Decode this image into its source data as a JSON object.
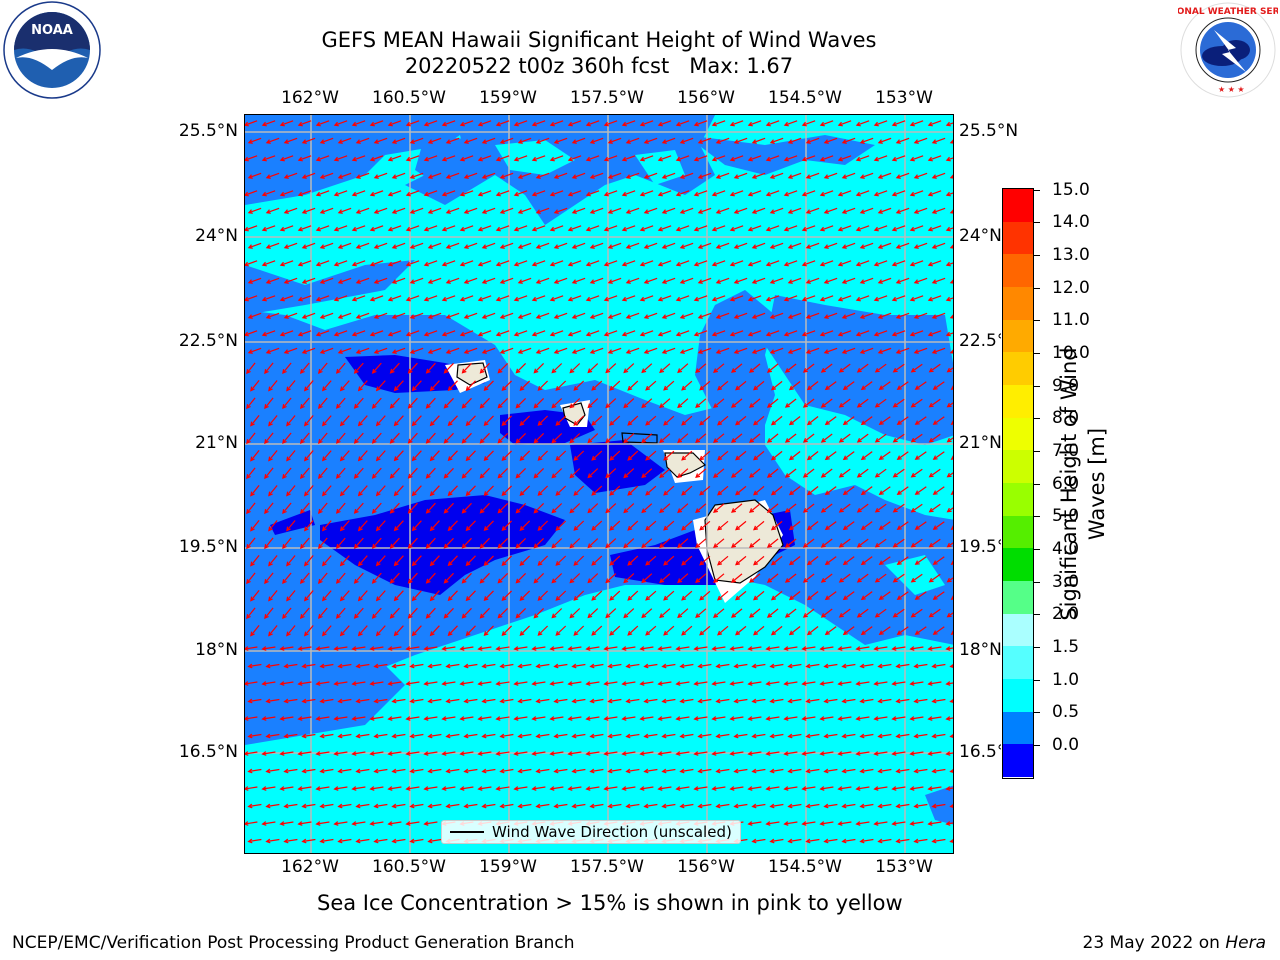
{
  "title": {
    "line1": "GEFS MEAN Hawaii Significant Height of Wind Waves",
    "line2": "20220522 t00z 360h fcst   Max: 1.67"
  },
  "lon_ticks": [
    "162°W",
    "160.5°W",
    "159°W",
    "157.5°W",
    "156°W",
    "154.5°W",
    "153°W"
  ],
  "lat_ticks": [
    "25.5°N",
    "24°N",
    "22.5°N",
    "21°N",
    "19.5°N",
    "18°N",
    "16.5°N"
  ],
  "colorbar": {
    "title": "Significant Height of Wind Waves [m]",
    "labels": [
      "15.0",
      "14.0",
      "13.0",
      "12.0",
      "11.0",
      "10.0",
      "9.0",
      "8.0",
      "7.0",
      "6.0",
      "5.0",
      "4.0",
      "3.0",
      "2.0",
      "1.5",
      "1.0",
      "0.5",
      "0.0"
    ],
    "colors": [
      "#ff0000",
      "#ff3300",
      "#ff6600",
      "#ff8800",
      "#ffaa00",
      "#ffcc00",
      "#ffee00",
      "#eeff00",
      "#ccff00",
      "#99ff00",
      "#55ee00",
      "#00dd00",
      "#55ff88",
      "#aaffff",
      "#55ffff",
      "#00ffff",
      "#0080ff",
      "#0000ff"
    ]
  },
  "legend": {
    "label": "Wind Wave Direction (unscaled)"
  },
  "note": "Sea Ice Concentration > 15% is shown in pink to yellow",
  "footer": {
    "left": "NCEP/EMC/Verification Post Processing Product Generation Branch",
    "date": "23 May 2022 on",
    "host": "Hera"
  },
  "logos": {
    "noaa": "NOAA",
    "nws": "NATIONAL WEATHER SERVICE"
  },
  "map_colors": {
    "land": "#ede9d8",
    "arrow": "#ff0000",
    "grid": "#bbbbbb"
  }
}
